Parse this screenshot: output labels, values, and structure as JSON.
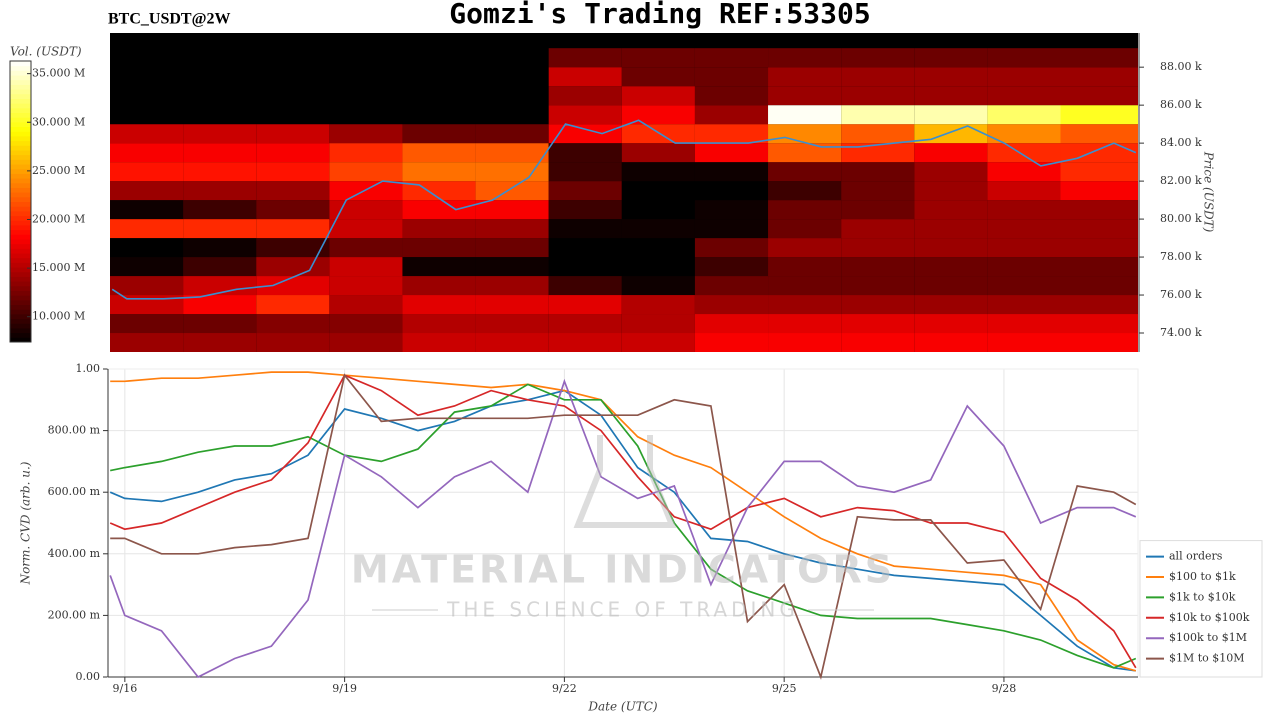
{
  "chart_data": [
    {
      "type": "heatmap",
      "title": "Gomzi's Trading REF:53305",
      "subtitle": "BTC_USDT@2W",
      "zlabel": "Vol. (USDT)",
      "ylabel": "Price (USDT)",
      "colormap": "hot",
      "xlim": [
        15.77,
        29.83
      ],
      "ylim": [
        73.0,
        89.8
      ],
      "zlim": [
        7.4,
        36.3
      ],
      "yticks": [
        {
          "value": 74,
          "label": "74.00 k"
        },
        {
          "value": 76,
          "label": "76.00 k"
        },
        {
          "value": 78,
          "label": "78.00 k"
        },
        {
          "value": 80,
          "label": "80.00 k"
        },
        {
          "value": 82,
          "label": "82.00 k"
        },
        {
          "value": 84,
          "label": "84.00 k"
        },
        {
          "value": 86,
          "label": "86.00 k"
        },
        {
          "value": 88,
          "label": "88.00 k"
        }
      ],
      "zticks": [
        {
          "value": 10,
          "label": "10.000 M"
        },
        {
          "value": 15,
          "label": "15.000 M"
        },
        {
          "value": 20,
          "label": "20.000 M"
        },
        {
          "value": 25,
          "label": "25.000 M"
        },
        {
          "value": 30,
          "label": "30.000 M"
        },
        {
          "value": 35,
          "label": "35.000 M"
        }
      ],
      "x_bins": [
        15.77,
        16.77,
        17.77,
        18.77,
        19.77,
        20.77,
        21.77,
        22.77,
        23.77,
        24.77,
        25.77,
        26.77,
        27.77,
        28.77,
        29.83
      ],
      "y_bins": [
        73,
        74,
        75,
        76,
        77,
        78,
        79,
        80,
        81,
        82,
        83,
        84,
        85,
        86,
        87,
        88,
        89
      ],
      "z": [
        [
          14,
          14,
          14,
          14,
          16,
          16,
          16,
          16,
          18,
          18,
          18,
          18,
          18,
          18
        ],
        [
          12,
          12,
          13,
          13,
          15,
          15,
          15,
          15,
          17,
          17,
          17,
          17,
          17,
          17
        ],
        [
          16,
          18,
          20,
          15,
          17,
          17,
          17,
          15,
          14,
          14,
          14,
          14,
          14,
          14
        ],
        [
          14,
          16,
          17,
          16,
          14,
          14,
          10,
          8,
          12,
          12,
          12,
          12,
          12,
          12
        ],
        [
          8,
          10,
          14,
          16,
          8,
          8,
          6,
          6,
          10,
          12,
          12,
          12,
          12,
          12
        ],
        [
          6,
          8,
          10,
          12,
          12,
          12,
          6,
          6,
          12,
          14,
          14,
          14,
          14,
          14
        ],
        [
          20,
          20,
          20,
          16,
          14,
          14,
          8,
          8,
          8,
          12,
          14,
          14,
          14,
          14
        ],
        [
          8,
          10,
          12,
          16,
          18,
          18,
          10,
          6,
          8,
          12,
          12,
          14,
          14,
          14
        ],
        [
          14,
          14,
          14,
          18,
          20,
          22,
          12,
          6,
          6,
          10,
          12,
          14,
          16,
          18
        ],
        [
          19,
          19,
          19,
          21,
          23,
          23,
          10,
          8,
          8,
          12,
          12,
          14,
          18,
          20
        ],
        [
          18,
          18,
          18,
          20,
          22,
          22,
          10,
          14,
          18,
          22,
          20,
          18,
          20,
          20
        ],
        [
          16,
          16,
          16,
          14,
          12,
          12,
          18,
          20,
          20,
          24,
          22,
          26,
          24,
          22
        ],
        [
          6,
          6,
          6,
          6,
          6,
          6,
          16,
          18,
          14,
          36,
          34,
          34,
          32,
          30
        ],
        [
          4,
          4,
          4,
          4,
          4,
          4,
          14,
          16,
          12,
          14,
          14,
          14,
          14,
          14
        ],
        [
          4,
          4,
          4,
          4,
          4,
          4,
          16,
          12,
          12,
          14,
          14,
          14,
          14,
          14
        ],
        [
          4,
          4,
          4,
          4,
          4,
          4,
          12,
          12,
          12,
          12,
          12,
          12,
          12,
          12
        ]
      ],
      "x": [
        15.8,
        16,
        16.5,
        17,
        17.5,
        18,
        18.5,
        19,
        19.5,
        20,
        20.5,
        21,
        21.5,
        22,
        22.5,
        23,
        23.5,
        24,
        24.5,
        25,
        25.5,
        26,
        26.5,
        27,
        27.5,
        28,
        28.5,
        29,
        29.5,
        29.8
      ],
      "price": {
        "color": "#3a8fd0",
        "values": [
          76.3,
          75.8,
          75.8,
          75.9,
          76.3,
          76.5,
          77.3,
          81.0,
          82.0,
          81.8,
          80.5,
          81.0,
          82.2,
          85.0,
          84.5,
          85.2,
          84.0,
          84.0,
          84.0,
          84.3,
          83.8,
          83.8,
          84.0,
          84.2,
          84.9,
          84.0,
          82.8,
          83.2,
          84.0,
          83.5
        ]
      }
    },
    {
      "type": "line",
      "xlabel": "Date (UTC)",
      "ylabel": "Norm. CVD (arb. u.)",
      "grid": true,
      "legend": "lower-right",
      "xlim": [
        15.77,
        29.83
      ],
      "ylim": [
        0,
        1
      ],
      "xticks": [
        {
          "value": 16,
          "label": "9/16"
        },
        {
          "value": 19,
          "label": "9/19"
        },
        {
          "value": 22,
          "label": "9/22"
        },
        {
          "value": 25,
          "label": "9/25"
        },
        {
          "value": 28,
          "label": "9/28"
        }
      ],
      "yticks": [
        {
          "value": 0,
          "label": "0.00"
        },
        {
          "value": 0.2,
          "label": "200.00 m"
        },
        {
          "value": 0.4,
          "label": "400.00 m"
        },
        {
          "value": 0.6,
          "label": "600.00 m"
        },
        {
          "value": 0.8,
          "label": "800.00 m"
        },
        {
          "value": 1,
          "label": "1.00"
        }
      ],
      "x": [
        15.8,
        16,
        16.5,
        17,
        17.5,
        18,
        18.5,
        19,
        19.5,
        20,
        20.5,
        21,
        21.5,
        22,
        22.5,
        23,
        23.5,
        24,
        24.5,
        25,
        25.5,
        26,
        26.5,
        27,
        27.5,
        28,
        28.5,
        29,
        29.5,
        29.8
      ],
      "series": [
        {
          "name": "all orders",
          "color": "#1f77b4",
          "values": [
            0.6,
            0.58,
            0.57,
            0.6,
            0.64,
            0.66,
            0.72,
            0.87,
            0.84,
            0.8,
            0.83,
            0.88,
            0.9,
            0.93,
            0.85,
            0.68,
            0.6,
            0.45,
            0.44,
            0.4,
            0.37,
            0.35,
            0.33,
            0.32,
            0.31,
            0.3,
            0.2,
            0.1,
            0.03,
            0.02
          ]
        },
        {
          "name": "$100 to $1k",
          "color": "#ff7f0e",
          "values": [
            0.96,
            0.96,
            0.97,
            0.97,
            0.98,
            0.99,
            0.99,
            0.98,
            0.97,
            0.96,
            0.95,
            0.94,
            0.95,
            0.93,
            0.9,
            0.78,
            0.72,
            0.68,
            0.6,
            0.52,
            0.45,
            0.4,
            0.36,
            0.35,
            0.34,
            0.33,
            0.3,
            0.12,
            0.04,
            0.02
          ]
        },
        {
          "name": "$1k to $10k",
          "color": "#2ca02c",
          "values": [
            0.67,
            0.68,
            0.7,
            0.73,
            0.75,
            0.75,
            0.78,
            0.72,
            0.7,
            0.74,
            0.86,
            0.88,
            0.95,
            0.9,
            0.9,
            0.75,
            0.5,
            0.35,
            0.28,
            0.24,
            0.2,
            0.19,
            0.19,
            0.19,
            0.17,
            0.15,
            0.12,
            0.07,
            0.03,
            0.06
          ]
        },
        {
          "name": "$10k to $100k",
          "color": "#d62728",
          "values": [
            0.5,
            0.48,
            0.5,
            0.55,
            0.6,
            0.64,
            0.76,
            0.98,
            0.93,
            0.85,
            0.88,
            0.93,
            0.9,
            0.88,
            0.8,
            0.65,
            0.52,
            0.48,
            0.55,
            0.58,
            0.52,
            0.55,
            0.54,
            0.5,
            0.5,
            0.47,
            0.32,
            0.25,
            0.15,
            0.03
          ]
        },
        {
          "name": "$100k to $1M",
          "color": "#9467bd",
          "values": [
            0.33,
            0.2,
            0.15,
            0.0,
            0.06,
            0.1,
            0.25,
            0.72,
            0.65,
            0.55,
            0.65,
            0.7,
            0.6,
            0.96,
            0.65,
            0.58,
            0.62,
            0.3,
            0.55,
            0.7,
            0.7,
            0.62,
            0.6,
            0.64,
            0.88,
            0.75,
            0.5,
            0.55,
            0.55,
            0.52
          ]
        },
        {
          "name": "$1M to $10M",
          "color": "#8c564b",
          "values": [
            0.45,
            0.45,
            0.4,
            0.4,
            0.42,
            0.43,
            0.45,
            0.98,
            0.83,
            0.84,
            0.84,
            0.84,
            0.84,
            0.85,
            0.85,
            0.85,
            0.9,
            0.88,
            0.18,
            0.3,
            0.0,
            0.52,
            0.51,
            0.51,
            0.37,
            0.38,
            0.22,
            0.62,
            0.6,
            0.56
          ]
        }
      ]
    }
  ],
  "watermark": {
    "title": "MATERIAL INDICATORS",
    "subtitle": "THE SCIENCE OF TRADING"
  }
}
